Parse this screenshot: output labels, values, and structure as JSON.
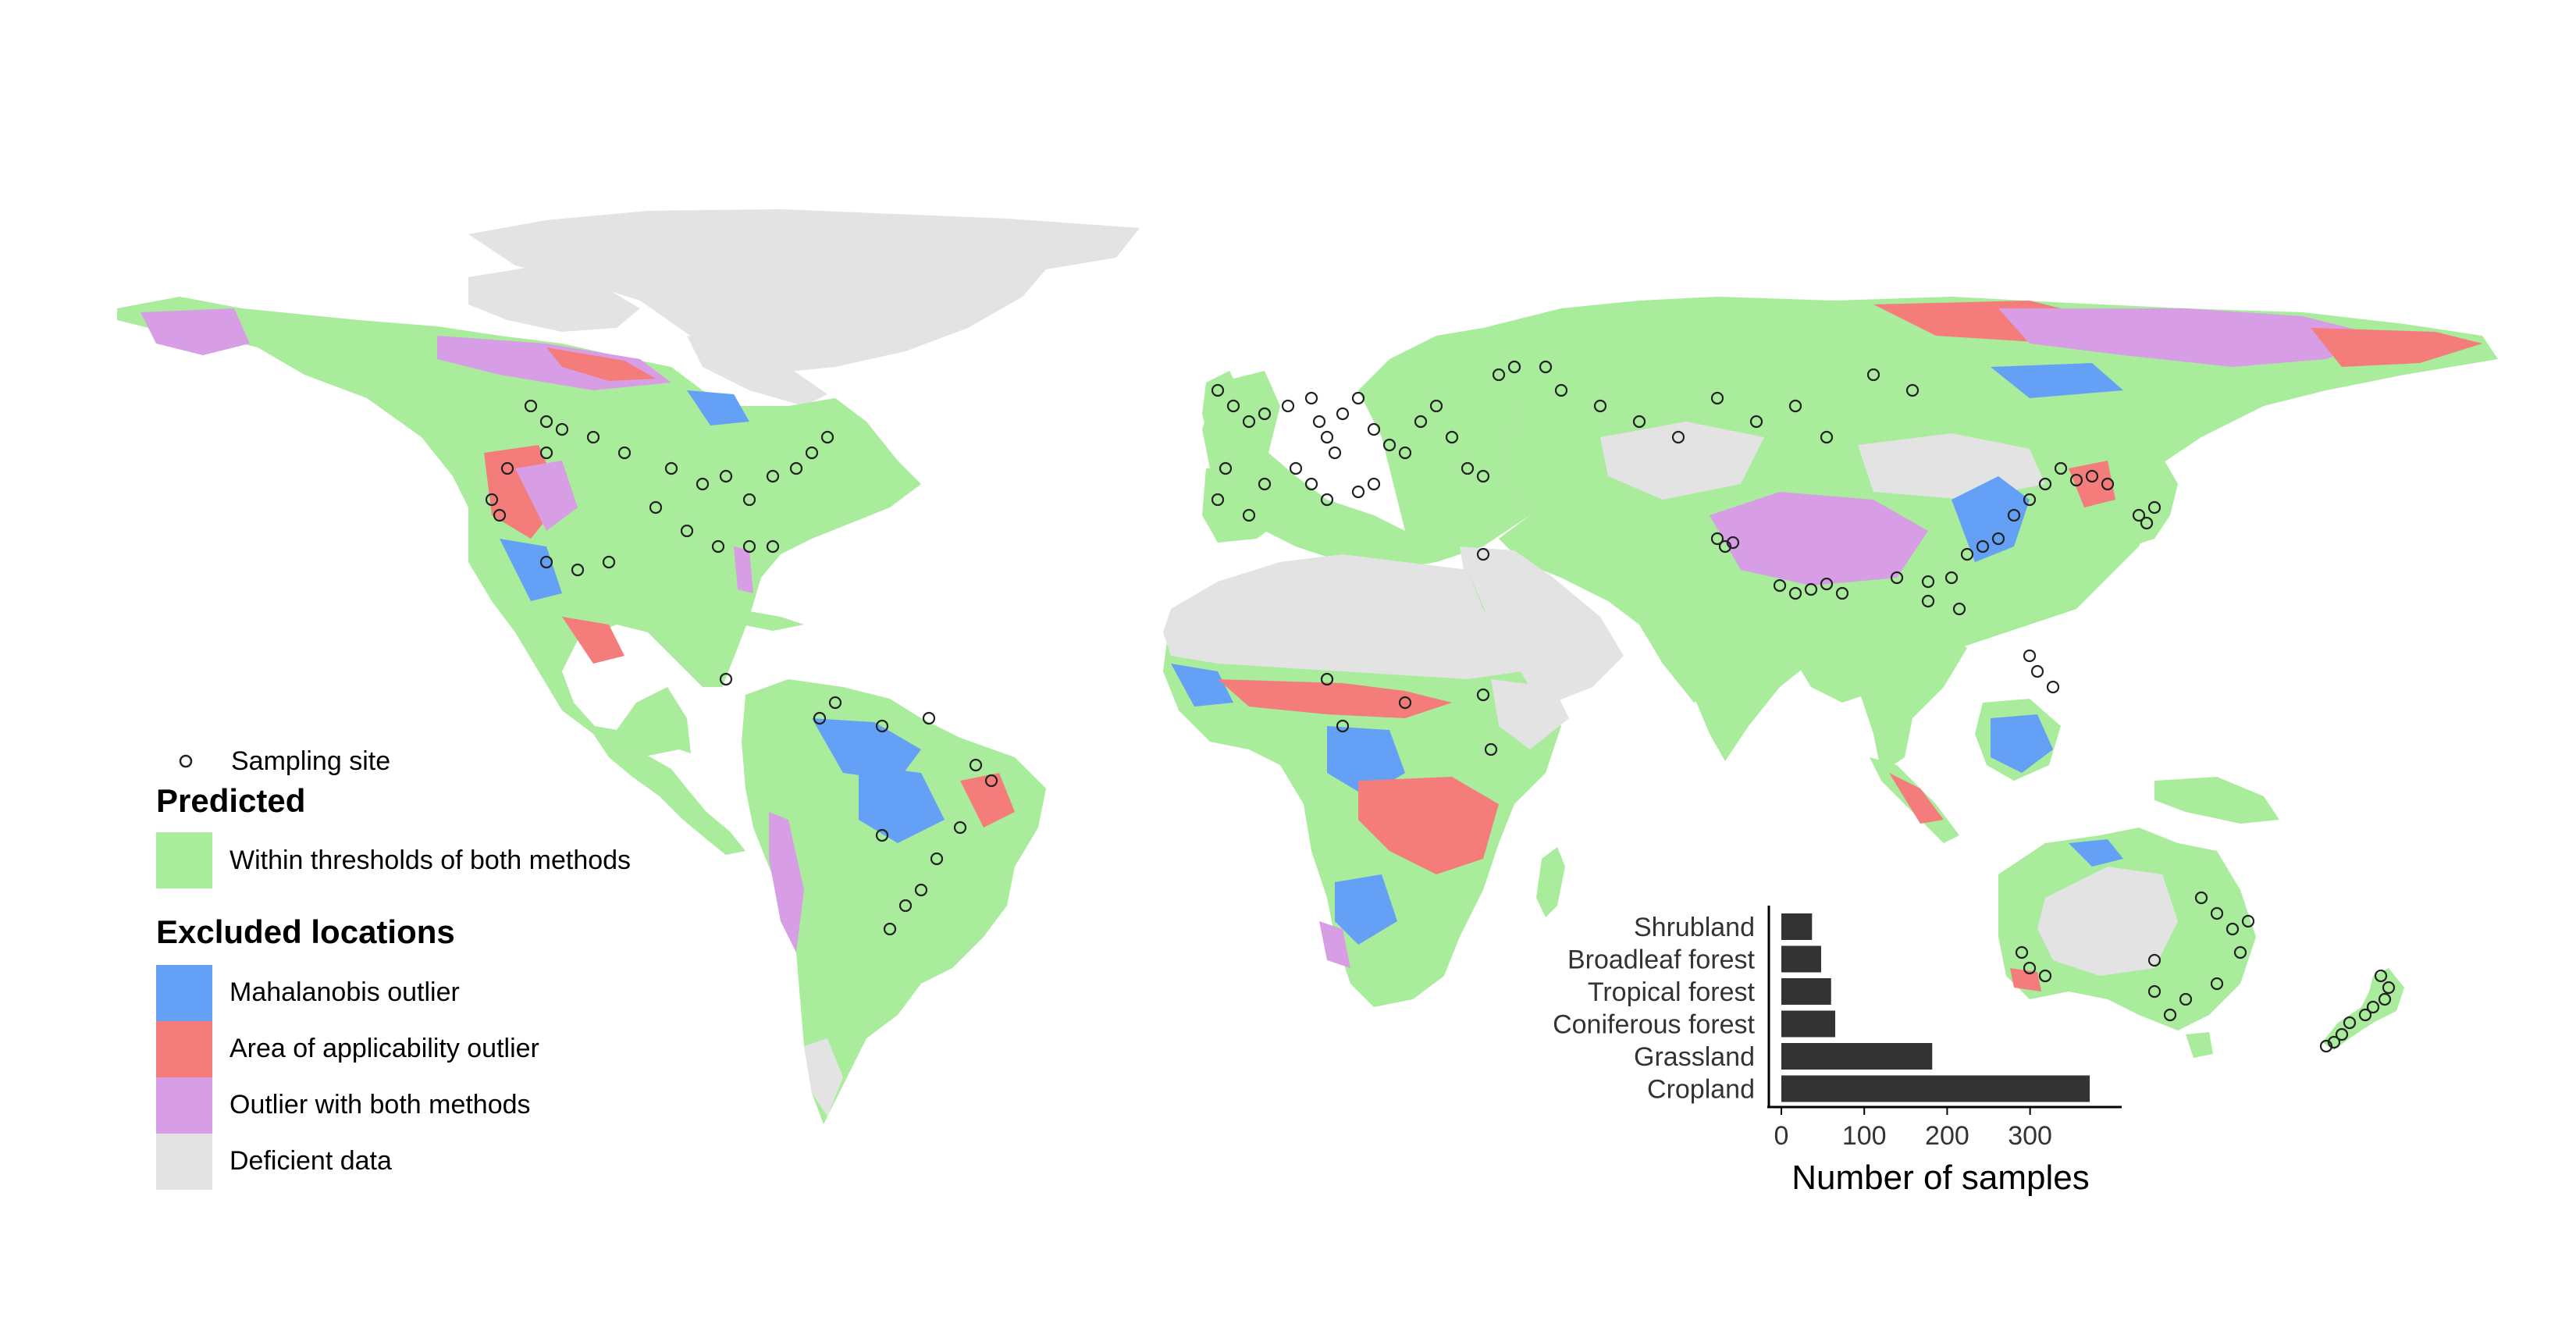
{
  "legend": {
    "sampling_site_label": "Sampling site",
    "predicted_title": "Predicted",
    "excluded_title": "Excluded locations",
    "items": [
      {
        "key": "within",
        "label": "Within thresholds of both methods",
        "color": "#a8ec9c"
      },
      {
        "key": "mahalanobis",
        "label": "Mahalanobis outlier",
        "color": "#63a0f6"
      },
      {
        "key": "aoa",
        "label": "Area of applicability outlier",
        "color": "#f47c7b"
      },
      {
        "key": "both",
        "label": "Outlier with both methods",
        "color": "#d89ee5"
      },
      {
        "key": "deficient",
        "label": "Deficient data",
        "color": "#e3e3e3"
      }
    ]
  },
  "colors": {
    "within": "#a8ec9c",
    "mahalanobis": "#63a0f6",
    "aoa": "#f47c7b",
    "both": "#d89ee5",
    "deficient": "#e3e3e3",
    "bar": "#333333",
    "site_stroke": "#222222"
  },
  "chart_data": {
    "type": "bar",
    "orientation": "horizontal",
    "categories": [
      "Shrubland",
      "Broadleaf forest",
      "Tropical forest",
      "Coniferous forest",
      "Grassland",
      "Cropland"
    ],
    "values": [
      37,
      48,
      60,
      65,
      182,
      372
    ],
    "xlabel": "Number of samples",
    "ylabel": "",
    "xlim": [
      0,
      390
    ],
    "xticks": [
      0,
      100,
      200,
      300
    ],
    "grid": false
  }
}
